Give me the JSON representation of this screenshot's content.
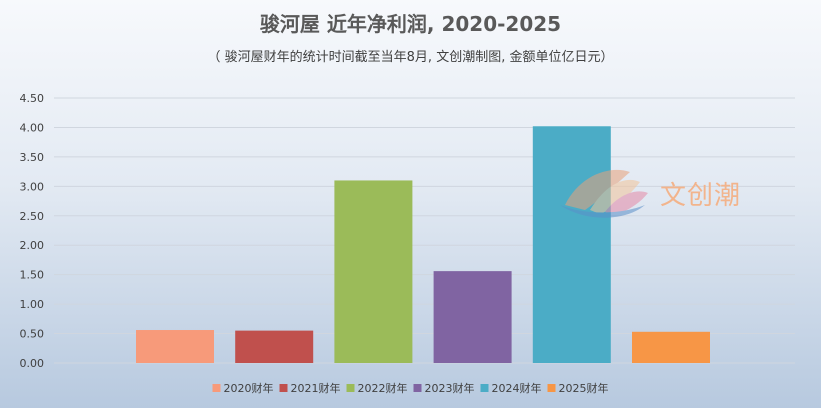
{
  "title": "骏河屋 近年净利润, 2020-2025",
  "subtitle": "（ 骏河屋财年的统计时间截至当年8月, 文创潮制图, 金额单位亿日元）",
  "watermark": "文创潮",
  "chart_data": {
    "type": "bar",
    "categories": [
      "2020财年",
      "2021财年",
      "2022财年",
      "2023财年",
      "2024财年",
      "2025财年"
    ],
    "values": [
      0.56,
      0.55,
      3.1,
      1.56,
      4.02,
      0.53
    ],
    "colors": [
      "#f79a7a",
      "#c0504d",
      "#9bbb59",
      "#8064a2",
      "#4bacc6",
      "#f79646"
    ],
    "ylim": [
      0,
      4.5
    ],
    "yticks": [
      "0.00",
      "0.50",
      "1.00",
      "1.50",
      "2.00",
      "2.50",
      "3.00",
      "3.50",
      "4.00",
      "4.50"
    ],
    "grid": true,
    "legend": "bottom"
  }
}
